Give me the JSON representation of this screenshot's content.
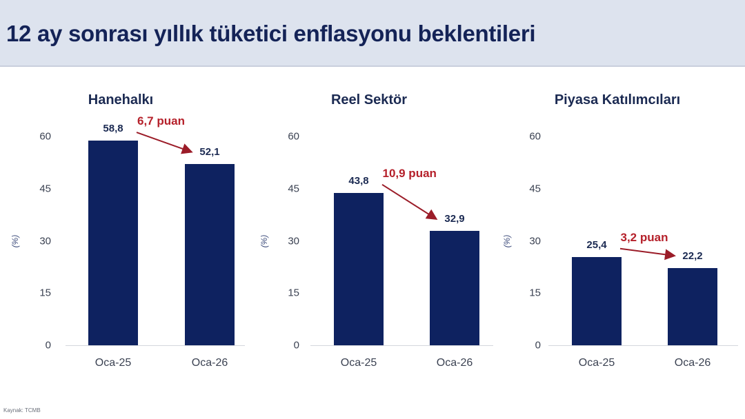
{
  "header": {
    "title": "12 ay sonrası yıllık tüketici enflasyonu beklentileri"
  },
  "footer": {
    "source": "Kaynak: TCMB"
  },
  "colors": {
    "bar": "#0e2260",
    "delta": "#b5202a",
    "title": "#142357",
    "header_bg": "#dde3ee"
  },
  "axis": {
    "unit": "(%)",
    "ticks": [
      "60",
      "45",
      "30",
      "15",
      "0"
    ]
  },
  "panels": [
    {
      "title": "Hanehalkı",
      "categories": [
        "Oca-25",
        "Oca-26"
      ],
      "value_labels": [
        "58,8",
        "52,1"
      ],
      "delta_label": "6,7 puan"
    },
    {
      "title": "Reel Sektör",
      "categories": [
        "Oca-25",
        "Oca-26"
      ],
      "value_labels": [
        "43,8",
        "32,9"
      ],
      "delta_label": "10,9 puan"
    },
    {
      "title": "Piyasa Katılımcıları",
      "categories": [
        "Oca-25",
        "Oca-26"
      ],
      "value_labels": [
        "25,4",
        "22,2"
      ],
      "delta_label": "3,2 puan"
    }
  ],
  "chart_data": [
    {
      "type": "bar",
      "title": "Hanehalkı",
      "categories": [
        "Oca-25",
        "Oca-26"
      ],
      "values": [
        58.8,
        52.1
      ],
      "annotation": "6,7 puan",
      "xlabel": "",
      "ylabel": "(%)",
      "ylim": [
        0,
        60
      ],
      "yticks": [
        0,
        15,
        30,
        45,
        60
      ],
      "grid": false,
      "legend": null
    },
    {
      "type": "bar",
      "title": "Reel Sektör",
      "categories": [
        "Oca-25",
        "Oca-26"
      ],
      "values": [
        43.8,
        32.9
      ],
      "annotation": "10,9 puan",
      "xlabel": "",
      "ylabel": "(%)",
      "ylim": [
        0,
        60
      ],
      "yticks": [
        0,
        15,
        30,
        45,
        60
      ],
      "grid": false,
      "legend": null
    },
    {
      "type": "bar",
      "title": "Piyasa Katılımcıları",
      "categories": [
        "Oca-25",
        "Oca-26"
      ],
      "values": [
        25.4,
        22.2
      ],
      "annotation": "3,2 puan",
      "xlabel": "",
      "ylabel": "(%)",
      "ylim": [
        0,
        60
      ],
      "yticks": [
        0,
        15,
        30,
        45,
        60
      ],
      "grid": false,
      "legend": null
    }
  ]
}
